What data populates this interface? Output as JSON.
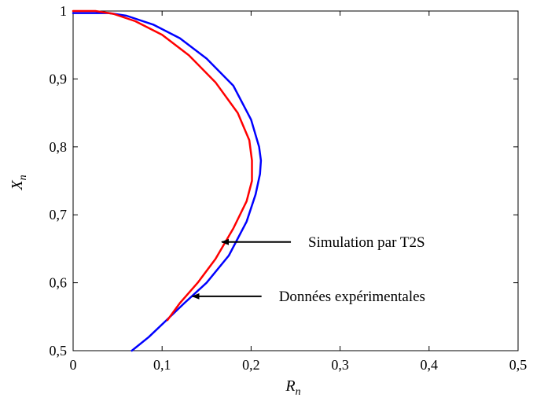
{
  "chart_data": {
    "type": "line",
    "xlabel": "R",
    "xlabel_sub": "n",
    "ylabel": "X",
    "ylabel_sub": "n",
    "xlim": [
      0,
      0.5
    ],
    "ylim": [
      0.5,
      1
    ],
    "x_ticks": [
      0,
      0.1,
      0.2,
      0.3,
      0.4,
      0.5
    ],
    "x_tick_labels": [
      "0",
      "0,1",
      "0,2",
      "0,3",
      "0,4",
      "0,5"
    ],
    "y_ticks": [
      0.5,
      0.6,
      0.7,
      0.8,
      0.9,
      1
    ],
    "y_tick_labels": [
      "0,5",
      "0,6",
      "0,7",
      "0,8",
      "0,9",
      "1"
    ],
    "grid": false,
    "series": [
      {
        "name": "Données expérimentales",
        "color": "#0000ff",
        "x": [
          0.066,
          0.085,
          0.105,
          0.125,
          0.15,
          0.175,
          0.195,
          0.205,
          0.21,
          0.211,
          0.209,
          0.2,
          0.18,
          0.15,
          0.12,
          0.09,
          0.06,
          0.04,
          0.02,
          0.0
        ],
        "y": [
          0.5,
          0.52,
          0.545,
          0.57,
          0.6,
          0.64,
          0.69,
          0.73,
          0.76,
          0.78,
          0.8,
          0.84,
          0.89,
          0.93,
          0.96,
          0.98,
          0.993,
          0.997,
          0.997,
          0.997
        ]
      },
      {
        "name": "Simulation par T2S",
        "color": "#ff0000",
        "x": [
          0.106,
          0.12,
          0.14,
          0.16,
          0.18,
          0.195,
          0.201,
          0.201,
          0.198,
          0.185,
          0.16,
          0.13,
          0.1,
          0.07,
          0.045,
          0.025,
          0.01,
          0.0
        ],
        "y": [
          0.545,
          0.57,
          0.6,
          0.635,
          0.68,
          0.72,
          0.75,
          0.78,
          0.81,
          0.85,
          0.895,
          0.935,
          0.965,
          0.985,
          0.996,
          1.0,
          1.0,
          1.0
        ]
      }
    ],
    "annotations": [
      {
        "text": "Simulation par T2S",
        "target": [
          0.167,
          0.66
        ],
        "series": "Simulation par T2S"
      },
      {
        "text": "Données expérimentales",
        "target": [
          0.134,
          0.58
        ],
        "series": "Données expérimentales"
      }
    ]
  }
}
